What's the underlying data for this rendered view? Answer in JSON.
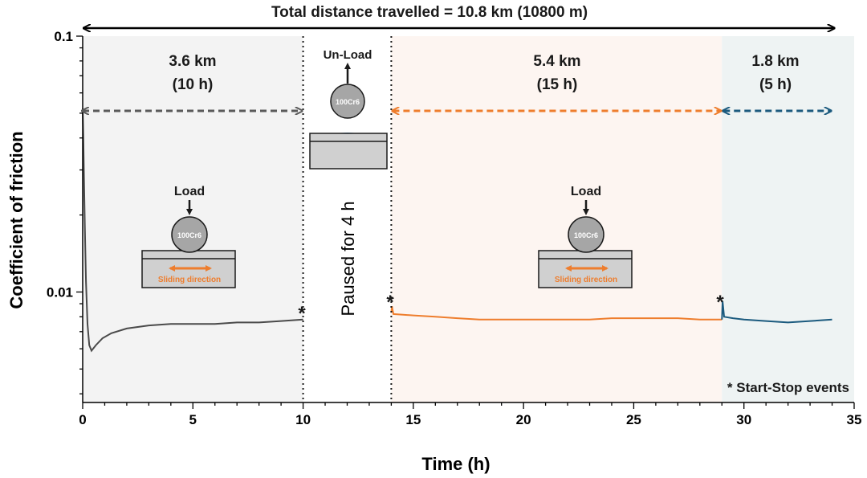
{
  "chart_data": {
    "type": "line",
    "title": "Total distance travelled = 10.8 km (10800 m)",
    "xlabel": "Time (h)",
    "ylabel": "Coefficient of friction",
    "xlim": [
      0,
      35
    ],
    "ylim": [
      0.0037,
      0.1
    ],
    "yscale": "log",
    "x_ticks": [
      0,
      5,
      10,
      15,
      20,
      25,
      30,
      35
    ],
    "y_ticks": [
      0.01,
      0.1
    ],
    "y_tick_labels": [
      "0.01",
      "0.1"
    ],
    "x_tick_labels": [
      "0",
      "5",
      "10",
      "15",
      "20",
      "25",
      "30",
      "35"
    ],
    "series": [
      {
        "color": "#4a4a4a",
        "x": [
          0,
          0.03,
          0.06,
          0.1,
          0.15,
          0.22,
          0.3,
          0.4,
          0.6,
          0.9,
          1.3,
          2,
          3,
          4,
          5,
          6,
          7,
          8,
          9,
          10
        ],
        "y": [
          0.052,
          0.04,
          0.028,
          0.018,
          0.011,
          0.0075,
          0.0062,
          0.0059,
          0.0062,
          0.0066,
          0.0069,
          0.0072,
          0.0074,
          0.0075,
          0.0075,
          0.0075,
          0.0076,
          0.0076,
          0.0077,
          0.0078
        ]
      },
      {
        "color": "#ee7d2d",
        "x": [
          14,
          14.03,
          14.1,
          15,
          16,
          17,
          18,
          19,
          20,
          21,
          22,
          23,
          24,
          25,
          26,
          27,
          28,
          29
        ],
        "y": [
          0.0083,
          0.0088,
          0.0082,
          0.0081,
          0.008,
          0.0079,
          0.0078,
          0.0078,
          0.0078,
          0.0078,
          0.0078,
          0.0078,
          0.0079,
          0.0079,
          0.0079,
          0.0079,
          0.0078,
          0.0078
        ]
      },
      {
        "color": "#1b5a7e",
        "x": [
          29,
          29.03,
          29.1,
          29.5,
          30,
          31,
          32,
          33,
          34
        ],
        "y": [
          0.0078,
          0.0092,
          0.008,
          0.0079,
          0.0078,
          0.0077,
          0.0076,
          0.0077,
          0.0078
        ]
      }
    ],
    "segments": [
      {
        "start": 0,
        "end": 10,
        "distance": "3.6 km",
        "duration": "(10 h)",
        "color": "#5a5a5a",
        "bg": "#f3f3f3"
      },
      {
        "start": 14,
        "end": 29,
        "distance": "5.4 km",
        "duration": "(15 h)",
        "color": "#ee7d2d",
        "bg": "#fdf5f1"
      },
      {
        "start": 29,
        "end": 34,
        "distance": "1.8 km",
        "duration": "(5 h)",
        "color": "#1b5a7e",
        "bg": "#eef3f3"
      }
    ],
    "pause": {
      "start": 10,
      "end": 14,
      "label": "Paused for 4 h",
      "unload_label": "Un-Load"
    },
    "start_stop_events": [
      10,
      14,
      29
    ],
    "start_stop_legend": "* Start-Stop events",
    "event_marker": "*",
    "schematic": {
      "load_label": "Load",
      "ball_label": "100Cr6",
      "sliding_label": "Sliding direction",
      "arrow_color": "#ee7d2d",
      "contact_color": "#5b9bd5"
    }
  }
}
